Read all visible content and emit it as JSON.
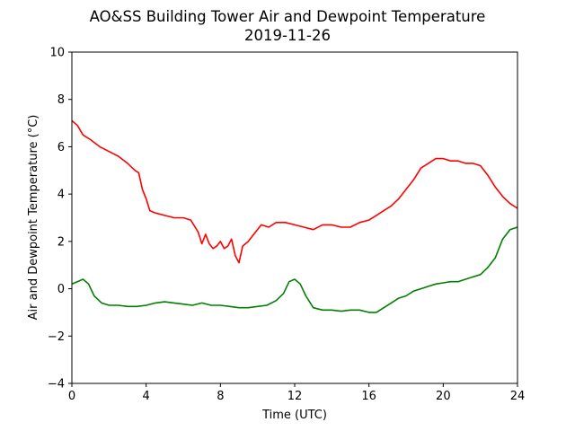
{
  "chart_data": {
    "type": "line",
    "title": "AO&SS Building Tower Air and Dewpoint Temperature",
    "subtitle": "2019-11-26",
    "xlabel": "Time (UTC)",
    "ylabel": "Air and Dewpoint Temperature (°C)",
    "xlim": [
      0,
      24
    ],
    "ylim": [
      -4,
      10
    ],
    "xticks": [
      0,
      4,
      8,
      12,
      16,
      20,
      24
    ],
    "yticks": [
      -4,
      -2,
      0,
      2,
      4,
      6,
      8,
      10
    ],
    "grid": false,
    "legend": "none",
    "series": [
      {
        "color": "#ff0000",
        "x": [
          0,
          0.3,
          0.6,
          1.0,
          1.5,
          2.0,
          2.5,
          3.0,
          3.4,
          3.6,
          3.8,
          4.0,
          4.2,
          4.5,
          5.0,
          5.5,
          6.0,
          6.4,
          6.8,
          7.0,
          7.2,
          7.4,
          7.6,
          7.8,
          8.0,
          8.2,
          8.4,
          8.6,
          8.8,
          9.0,
          9.2,
          9.5,
          9.8,
          10.2,
          10.6,
          11.0,
          11.5,
          12.0,
          12.5,
          13.0,
          13.5,
          14.0,
          14.5,
          15.0,
          15.5,
          16.0,
          16.4,
          16.8,
          17.2,
          17.6,
          18.0,
          18.4,
          18.8,
          19.2,
          19.6,
          20.0,
          20.4,
          20.8,
          21.2,
          21.6,
          22.0,
          22.4,
          22.8,
          23.2,
          23.6,
          24.0
        ],
        "y": [
          7.1,
          6.9,
          6.5,
          6.3,
          6.0,
          5.8,
          5.6,
          5.3,
          5.0,
          4.9,
          4.2,
          3.8,
          3.3,
          3.2,
          3.1,
          3.0,
          3.0,
          2.9,
          2.4,
          1.9,
          2.3,
          1.9,
          1.7,
          1.8,
          2.0,
          1.7,
          1.8,
          2.1,
          1.4,
          1.1,
          1.8,
          2.0,
          2.3,
          2.7,
          2.6,
          2.8,
          2.8,
          2.7,
          2.6,
          2.5,
          2.7,
          2.7,
          2.6,
          2.6,
          2.8,
          2.9,
          3.1,
          3.3,
          3.5,
          3.8,
          4.2,
          4.6,
          5.1,
          5.3,
          5.5,
          5.5,
          5.4,
          5.4,
          5.3,
          5.3,
          5.2,
          4.8,
          4.3,
          3.9,
          3.6,
          3.4
        ]
      },
      {
        "color": "#008000",
        "x": [
          0,
          0.3,
          0.6,
          0.9,
          1.2,
          1.6,
          2.0,
          2.5,
          3.0,
          3.5,
          4.0,
          4.5,
          5.0,
          5.5,
          6.0,
          6.5,
          7.0,
          7.5,
          8.0,
          8.5,
          9.0,
          9.5,
          10.0,
          10.5,
          11.0,
          11.4,
          11.7,
          12.0,
          12.3,
          12.6,
          13.0,
          13.5,
          14.0,
          14.5,
          15.0,
          15.5,
          16.0,
          16.4,
          16.8,
          17.2,
          17.6,
          18.0,
          18.4,
          18.8,
          19.2,
          19.6,
          20.0,
          20.4,
          20.8,
          21.2,
          21.6,
          22.0,
          22.4,
          22.8,
          23.2,
          23.6,
          24.0
        ],
        "y": [
          0.2,
          0.3,
          0.4,
          0.2,
          -0.3,
          -0.6,
          -0.7,
          -0.7,
          -0.75,
          -0.75,
          -0.7,
          -0.6,
          -0.55,
          -0.6,
          -0.65,
          -0.7,
          -0.6,
          -0.7,
          -0.7,
          -0.75,
          -0.8,
          -0.8,
          -0.75,
          -0.7,
          -0.5,
          -0.2,
          0.3,
          0.4,
          0.2,
          -0.3,
          -0.8,
          -0.9,
          -0.9,
          -0.95,
          -0.9,
          -0.9,
          -1.0,
          -1.0,
          -0.8,
          -0.6,
          -0.4,
          -0.3,
          -0.1,
          0.0,
          0.1,
          0.2,
          0.25,
          0.3,
          0.3,
          0.4,
          0.5,
          0.6,
          0.9,
          1.3,
          2.1,
          2.5,
          2.6
        ]
      }
    ]
  }
}
